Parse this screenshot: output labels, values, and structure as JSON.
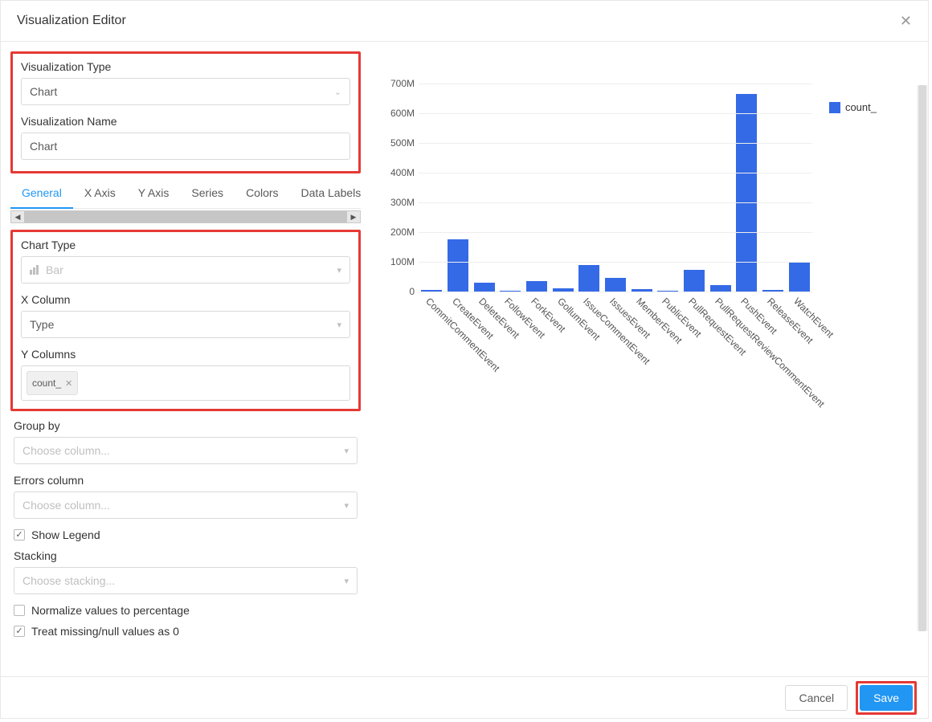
{
  "modal": {
    "title": "Visualization Editor",
    "cancel_label": "Cancel",
    "save_label": "Save"
  },
  "highlight_color": "#e53935",
  "viz_type": {
    "label": "Visualization Type",
    "value": "Chart"
  },
  "viz_name": {
    "label": "Visualization Name",
    "value": "Chart"
  },
  "tabs": [
    "General",
    "X Axis",
    "Y Axis",
    "Series",
    "Colors",
    "Data Labels"
  ],
  "active_tab": "General",
  "chart_type": {
    "label": "Chart Type",
    "value": "Bar"
  },
  "x_column": {
    "label": "X Column",
    "value": "Type"
  },
  "y_columns": {
    "label": "Y Columns",
    "tags": [
      "count_"
    ]
  },
  "group_by": {
    "label": "Group by",
    "placeholder": "Choose column..."
  },
  "errors_col": {
    "label": "Errors column",
    "placeholder": "Choose column..."
  },
  "show_legend": {
    "label": "Show Legend",
    "checked": true
  },
  "stacking": {
    "label": "Stacking",
    "placeholder": "Choose stacking..."
  },
  "normalize": {
    "label": "Normalize values to percentage",
    "checked": false
  },
  "treat_null": {
    "label": "Treat missing/null values as 0",
    "checked": true
  },
  "chart": {
    "type": "bar",
    "series_name": "count_",
    "bar_color": "#356ae6",
    "background_color": "#ffffff",
    "axis_font_size": 12,
    "axis_color": "#555555",
    "y": {
      "min": 0,
      "max": 700000000,
      "ticks": [
        0,
        100000000,
        200000000,
        300000000,
        400000000,
        500000000,
        600000000,
        700000000
      ],
      "tick_labels": [
        "0",
        "100M",
        "200M",
        "300M",
        "400M",
        "500M",
        "600M",
        "700M"
      ]
    },
    "categories": [
      "CommitCommentEvent",
      "CreateEvent",
      "DeleteEvent",
      "FollowEvent",
      "ForkEvent",
      "GollumEvent",
      "IssueCommentEvent",
      "IssuesEvent",
      "MemberEvent",
      "PublicEvent",
      "PullRequestEvent",
      "PullRequestReviewCommentEvent",
      "PushEvent",
      "ReleaseEvent",
      "WatchEvent"
    ],
    "values": [
      6000000,
      175000000,
      30000000,
      2000000,
      35000000,
      12000000,
      88000000,
      46000000,
      8000000,
      4000000,
      72000000,
      22000000,
      665000000,
      6000000,
      100000000
    ],
    "xlabel_rotation_deg": 45
  }
}
